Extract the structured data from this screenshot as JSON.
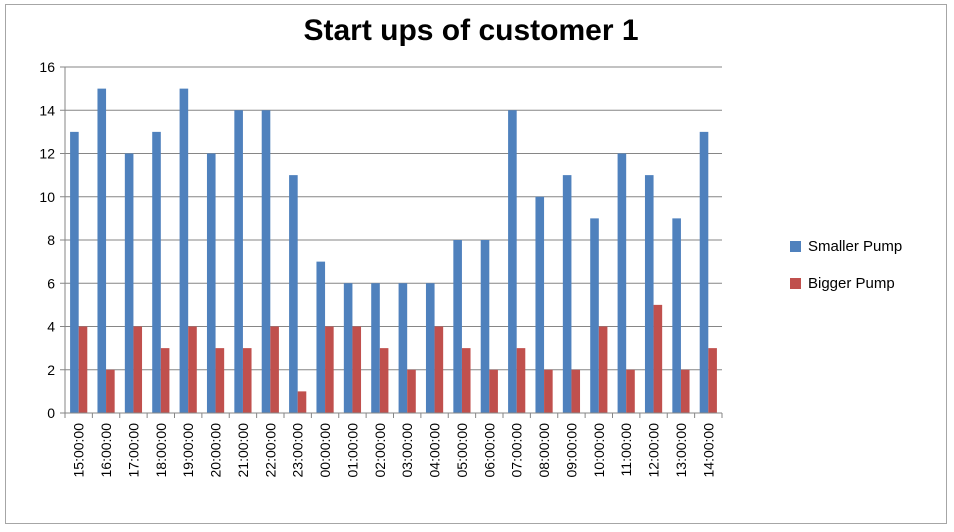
{
  "chart_data": {
    "type": "bar",
    "title": "Start ups of customer 1",
    "xlabel": "",
    "ylabel": "",
    "ylim": [
      0,
      16
    ],
    "yticks": [
      0,
      2,
      4,
      6,
      8,
      10,
      12,
      14,
      16
    ],
    "grid": true,
    "legend_position": "right",
    "categories": [
      "15:00:00",
      "16:00:00",
      "17:00:00",
      "18:00:00",
      "19:00:00",
      "20:00:00",
      "21:00:00",
      "22:00:00",
      "23:00:00",
      "00:00:00",
      "01:00:00",
      "02:00:00",
      "03:00:00",
      "04:00:00",
      "05:00:00",
      "06:00:00",
      "07:00:00",
      "08:00:00",
      "09:00:00",
      "10:00:00",
      "11:00:00",
      "12:00:00",
      "13:00:00",
      "14:00:00"
    ],
    "series": [
      {
        "name": "Smaller Pump",
        "color": "#4f81bd",
        "values": [
          13,
          15,
          12,
          13,
          15,
          12,
          14,
          14,
          11,
          7,
          6,
          6,
          6,
          6,
          8,
          8,
          14,
          10,
          11,
          9,
          12,
          11,
          9,
          13
        ]
      },
      {
        "name": "Bigger Pump",
        "color": "#c0504d",
        "values": [
          4,
          2,
          4,
          3,
          4,
          3,
          3,
          4,
          1,
          4,
          4,
          3,
          2,
          4,
          3,
          2,
          3,
          2,
          2,
          4,
          2,
          5,
          2,
          3
        ]
      }
    ]
  }
}
